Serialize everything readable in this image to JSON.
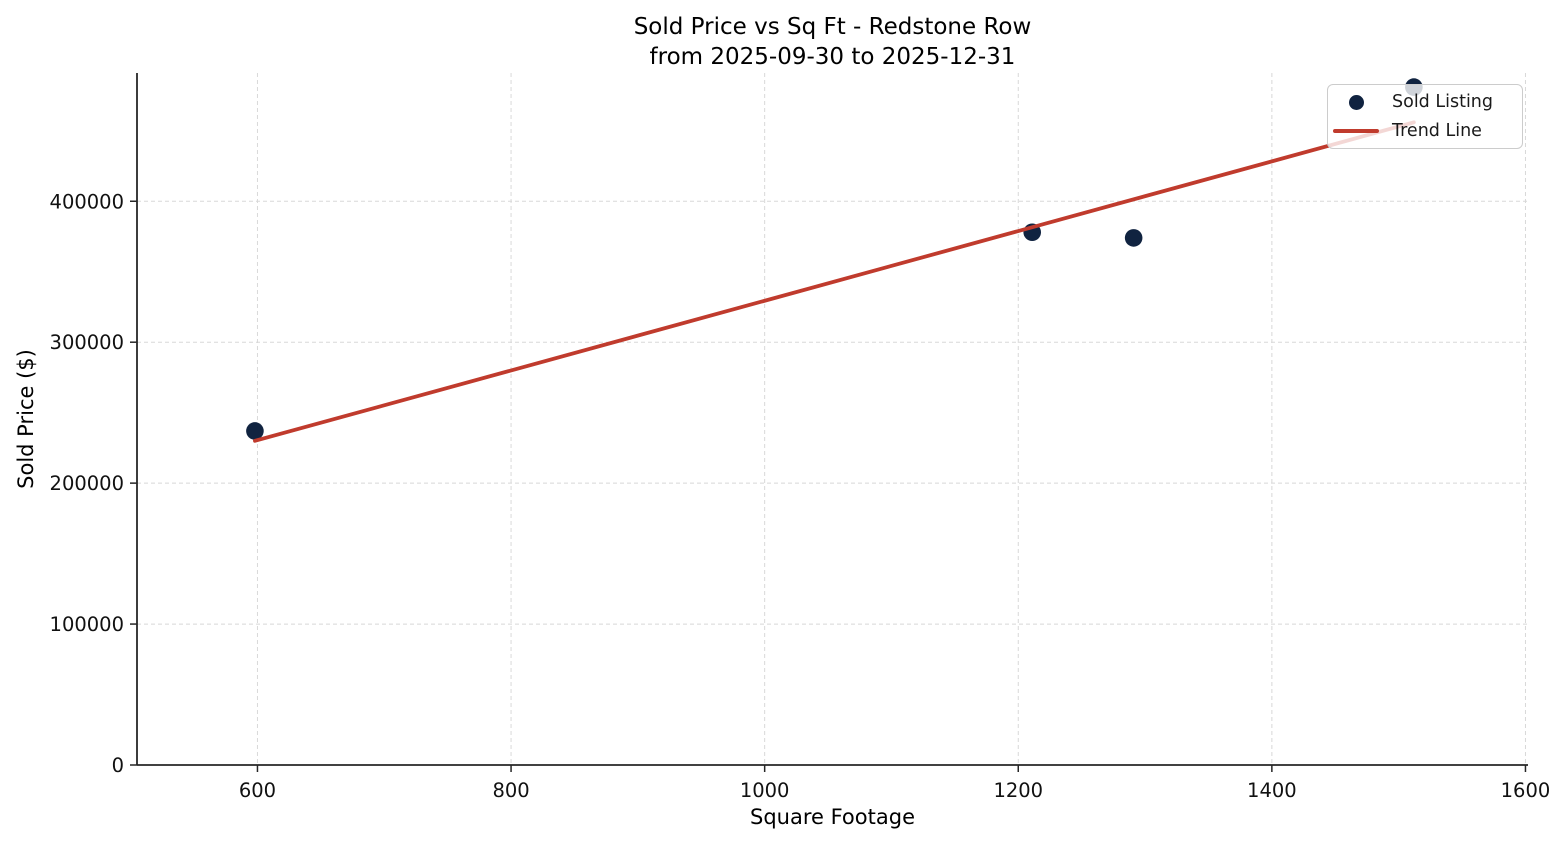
{
  "chart_data": {
    "type": "scatter",
    "title": "Sold Price vs Sq Ft - Redstone Row",
    "subtitle": "from 2025-09-30 to 2025-12-31",
    "xlabel": "Square Footage",
    "ylabel": "Sold Price ($)",
    "xlim": [
      505,
      1602
    ],
    "ylim": [
      0,
      491000
    ],
    "x_ticks": [
      600,
      800,
      1000,
      1200,
      1400,
      1600
    ],
    "y_ticks": [
      0,
      100000,
      200000,
      300000,
      400000
    ],
    "grid": true,
    "grid_style": "dashed",
    "legend_position": "upper-right",
    "series": [
      {
        "name": "Sold Listing",
        "kind": "scatter",
        "color": "#102340",
        "marker": "circle",
        "marker_radius": 8.8,
        "points": [
          {
            "sqft": 598,
            "price": 237000
          },
          {
            "sqft": 1211,
            "price": 378000
          },
          {
            "sqft": 1291,
            "price": 374000
          },
          {
            "sqft": 1512,
            "price": 481000
          }
        ]
      },
      {
        "name": "Trend Line",
        "kind": "line",
        "color": "#c03b2d",
        "line_width": 3.8,
        "points": [
          {
            "sqft": 598,
            "price": 230000
          },
          {
            "sqft": 1512,
            "price": 456000
          }
        ]
      }
    ],
    "colors": {
      "background": "#ffffff",
      "grid": "#d8d8d8",
      "spine": "#262626",
      "tick_text": "#111111",
      "legend_border": "#cccccc"
    }
  }
}
